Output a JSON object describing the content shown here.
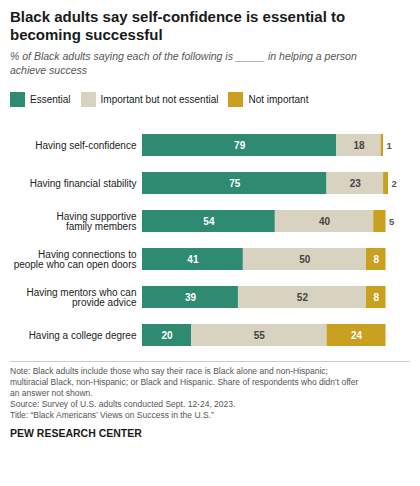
{
  "chart_data": {
    "type": "bar",
    "orientation": "horizontal",
    "stacked": true,
    "data_labels": true,
    "tick_labels": "y",
    "grid": false,
    "legend": "top",
    "title": "Black adults say self-confidence is essential to\nbecoming successful",
    "subtitle": "% of Black adults saying each of the following is _____ in helping a person\nachieve success",
    "note": "Note: Black adults include those who say their race is Black alone and non-Hispanic;\nmultiracial Black, non-Hispanic; or Black and Hispanic. Share of respondents who didn't offer\nan answer not shown.\nSource: Survey of U.S. adults conducted Sept. 12-24, 2023.\nTitle: “Black Americans’ Views on Success in the U.S.”",
    "footer": "PEW RESEARCH CENTER",
    "categories": [
      "Having self-confidence",
      "Having financial stability",
      "Having supportive\nfamily members",
      "Having connections to\npeople who can open doors",
      "Having mentors who can\nprovide advice",
      "Having a college degree"
    ],
    "series": [
      {
        "name": "Essential",
        "color": "#2e8b72",
        "values": [
          79,
          75,
          54,
          41,
          39,
          20
        ]
      },
      {
        "name": "Important but not essential",
        "color": "#d8d3c0",
        "values": [
          18,
          23,
          40,
          50,
          52,
          55
        ]
      },
      {
        "name": "Not important",
        "color": "#c9a020",
        "values": [
          1,
          2,
          5,
          8,
          8,
          24
        ]
      }
    ],
    "xlim": [
      0,
      100
    ]
  }
}
